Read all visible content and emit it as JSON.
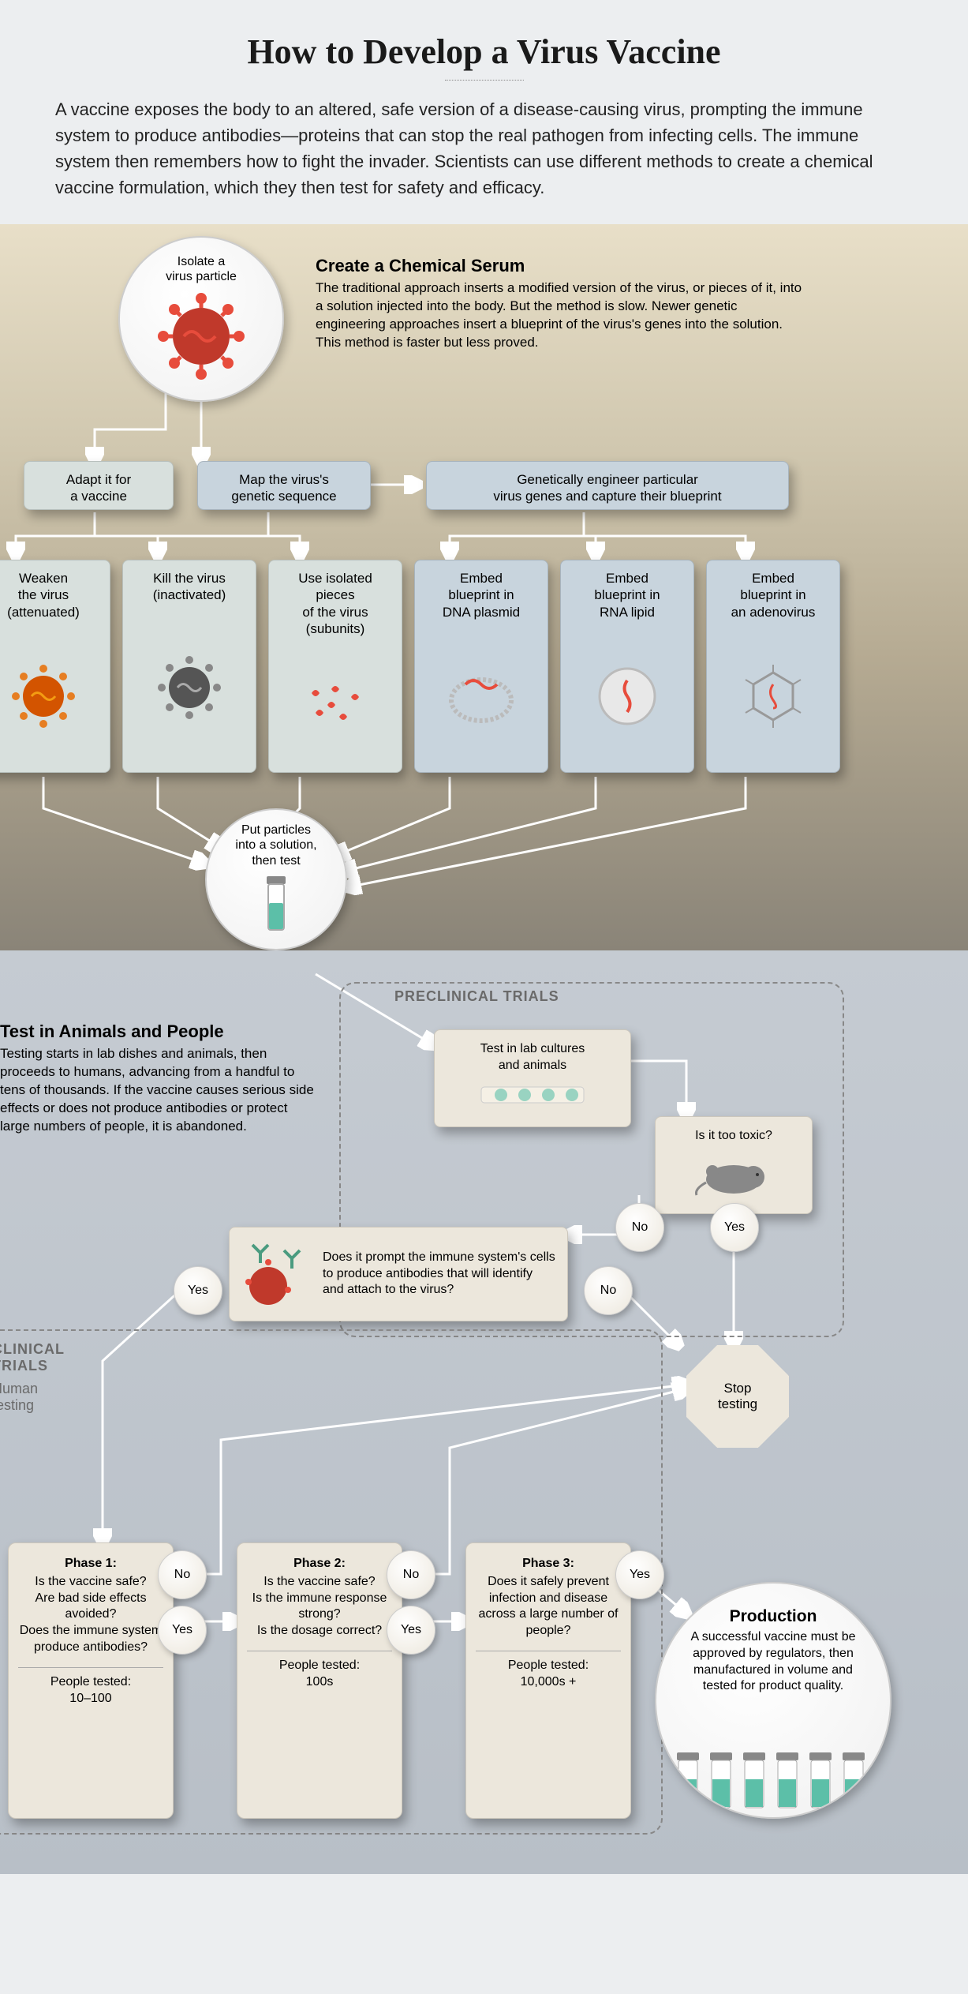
{
  "title": "How to Develop a Virus Vaccine",
  "intro": "A vaccine exposes the body to an altered, safe version of a disease-causing virus, prompting the immune system to produce antibodies—proteins that can stop the real pathogen from infecting cells. The immune system then remembers how to fight the invader. Scientists can use different methods to create a chemical vaccine formulation, which they then test for safety and efficacy.",
  "section1": {
    "isolate": "Isolate a\nvirus particle",
    "serum_h": "Create a Chemical Serum",
    "serum_p": "The traditional approach inserts a modified version of the virus, or pieces of it, into a solution injected into the body. But the method is slow. Newer genetic engineering approaches insert a blueprint of the virus's genes into the solution. This method is faster but less proved.",
    "adapt": "Adapt it for\na vaccine",
    "map": "Map the virus's\ngenetic sequence",
    "engineer": "Genetically engineer particular\nvirus genes and capture their blueprint",
    "weaken": "Weaken\nthe virus\n(attenuated)",
    "kill": "Kill the virus\n(inactivated)",
    "subunits": "Use isolated\npieces\nof the virus\n(subunits)",
    "dna": "Embed\nblueprint in\nDNA plasmid",
    "rna": "Embed\nblueprint in\nRNA lipid",
    "adeno": "Embed\nblueprint in\nan adenovirus",
    "solution": "Put particles\ninto a solution,\nthen test"
  },
  "section2": {
    "test_h": "Test in Animals and People",
    "test_p": "Testing starts in lab dishes and animals, then proceeds to humans, advancing from a handful to tens of thousands. If the vaccine causes serious side effects or does not produce antibodies or protect large numbers of people, it is abandoned.",
    "preclinical": "PRECLINICAL TRIALS",
    "clinical": "CLINICAL\nTRIALS",
    "human": "Human\ntesting",
    "lab": "Test in lab cultures\nand animals",
    "toxic": "Is it too toxic?",
    "antibodies": "Does it prompt the immune system's cells to produce antibodies that will identify and attach to the virus?",
    "stop": "Stop\ntesting",
    "yes": "Yes",
    "no": "No",
    "phase1_h": "Phase 1:",
    "phase1_p": "Is the vaccine safe?\nAre bad side effects avoided?\nDoes the immune system produce antibodies?",
    "phase1_n": "People tested:\n10–100",
    "phase2_h": "Phase 2:",
    "phase2_p": "Is the vaccine safe?\nIs the immune response strong?\nIs the dosage correct?",
    "phase2_n": "People tested:\n100s",
    "phase3_h": "Phase 3:",
    "phase3_p": "Does it safely prevent infection and disease across a large number of people?",
    "phase3_n": "People tested:\n10,000s +",
    "prod_h": "Production",
    "prod_p": "A successful vaccine must be approved by regulators, then manufac­tured in volume and tested for product quality."
  },
  "colors": {
    "virus_red": "#e74c3c",
    "virus_dark": "#c0392b",
    "virus_orange": "#e67e22",
    "virus_grey": "#7f8c8d",
    "vial_teal": "#5cbfa8",
    "antibody": "#4a9b7f"
  }
}
